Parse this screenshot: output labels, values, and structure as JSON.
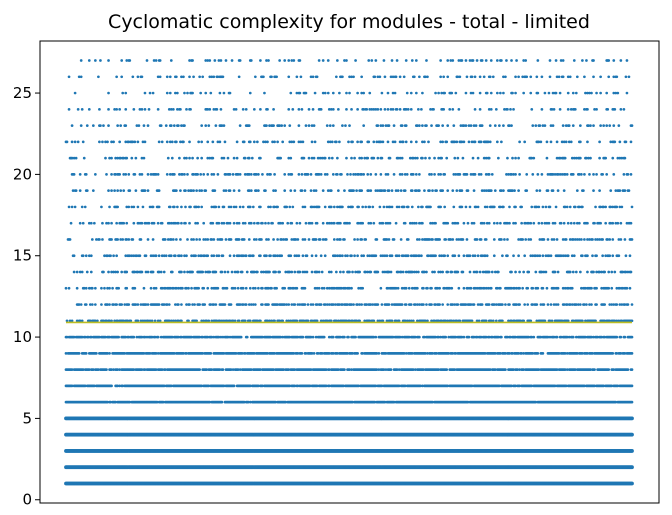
{
  "chart_data": {
    "type": "scatter",
    "title": "Cyclomatic complexity for modules - total - limited",
    "xlabel": "",
    "ylabel": "",
    "xlim": [
      0,
      1
    ],
    "ylim": [
      -0.2,
      28.2
    ],
    "x_ticks_visible": false,
    "yticks": [
      0,
      5,
      10,
      15,
      20,
      25
    ],
    "ytick_labels": [
      "0",
      "5",
      "10",
      "15",
      "20",
      "25"
    ],
    "grid": false,
    "legend": "none",
    "point_color": "#1f77b4",
    "series": [
      {
        "kind": "scatter",
        "y_levels": [
          1,
          2,
          3,
          4,
          5,
          6,
          7,
          8,
          9,
          10,
          11,
          12,
          13,
          14,
          15,
          16,
          17,
          18,
          19,
          20,
          21,
          22,
          23,
          24,
          25,
          26,
          27
        ],
        "level_density": [
          1.0,
          1.0,
          1.0,
          1.0,
          1.0,
          0.96,
          0.9,
          0.86,
          0.82,
          0.76,
          0.62,
          0.55,
          0.48,
          0.42,
          0.42,
          0.42,
          0.36,
          0.34,
          0.32,
          0.34,
          0.28,
          0.27,
          0.26,
          0.24,
          0.2,
          0.2,
          0.18
        ],
        "color": "#1f77b4"
      },
      {
        "kind": "line",
        "y": 10.9,
        "x_range": [
          0,
          1
        ],
        "color": "#bcbd22"
      }
    ]
  }
}
